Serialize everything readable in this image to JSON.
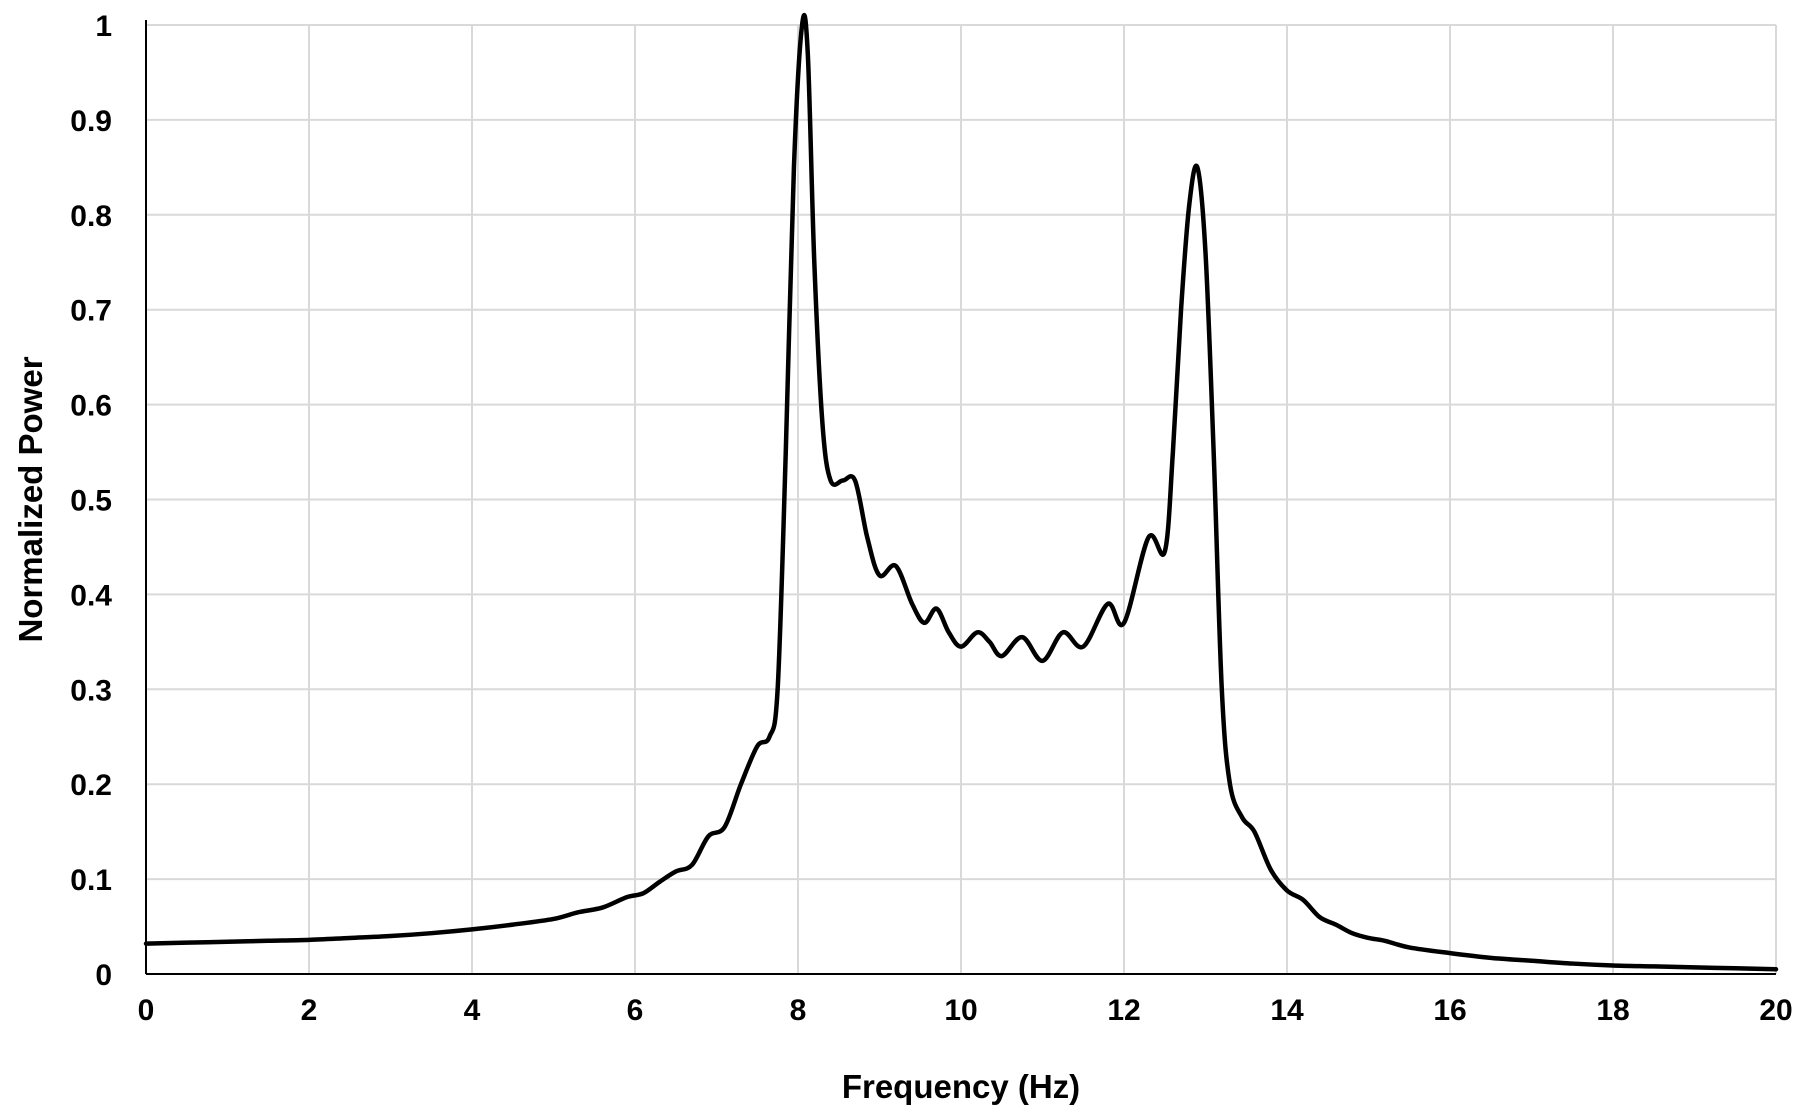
{
  "chart_data": {
    "type": "line",
    "title": "",
    "xlabel": "Frequency (Hz)",
    "ylabel": "Normalized Power",
    "xlim": [
      0,
      20
    ],
    "ylim": [
      0,
      1
    ],
    "x_ticks": [
      "0",
      "2",
      "4",
      "6",
      "8",
      "10",
      "12",
      "14",
      "16",
      "18",
      "20"
    ],
    "y_ticks": [
      "0",
      "0.1",
      "0.2",
      "0.3",
      "0.4",
      "0.5",
      "0.6",
      "0.7",
      "0.8",
      "0.9",
      "1"
    ],
    "grid": true,
    "legend": "none",
    "line_color": "#000000",
    "grid_color": "#d9d9d9",
    "series": [
      {
        "x": [
          0,
          0.5,
          1,
          1.5,
          2,
          2.5,
          3,
          3.5,
          4,
          4.5,
          5,
          5.3,
          5.6,
          5.9,
          6.1,
          6.3,
          6.5,
          6.7,
          6.9,
          7.1,
          7.3,
          7.5,
          7.65,
          7.75,
          7.85,
          7.95,
          8.05,
          8.12,
          8.2,
          8.3,
          8.4,
          8.55,
          8.7,
          8.85,
          9.0,
          9.2,
          9.4,
          9.55,
          9.7,
          9.85,
          10.0,
          10.2,
          10.35,
          10.5,
          10.75,
          11.0,
          11.25,
          11.5,
          11.8,
          12.0,
          12.3,
          12.5,
          12.6,
          12.7,
          12.8,
          12.9,
          13.0,
          13.1,
          13.2,
          13.3,
          13.45,
          13.6,
          13.8,
          14.0,
          14.2,
          14.4,
          14.6,
          14.8,
          15.0,
          15.2,
          15.5,
          16.0,
          16.5,
          17.0,
          17.5,
          18.0,
          18.5,
          19.0,
          19.5,
          20.0
        ],
        "y": [
          0.032,
          0.033,
          0.034,
          0.035,
          0.036,
          0.038,
          0.04,
          0.043,
          0.047,
          0.052,
          0.058,
          0.065,
          0.07,
          0.081,
          0.085,
          0.097,
          0.108,
          0.115,
          0.145,
          0.155,
          0.2,
          0.24,
          0.25,
          0.3,
          0.55,
          0.85,
          1.0,
          0.97,
          0.75,
          0.58,
          0.52,
          0.52,
          0.52,
          0.46,
          0.42,
          0.43,
          0.39,
          0.37,
          0.385,
          0.36,
          0.345,
          0.36,
          0.35,
          0.335,
          0.355,
          0.33,
          0.36,
          0.345,
          0.39,
          0.37,
          0.46,
          0.445,
          0.55,
          0.7,
          0.81,
          0.85,
          0.76,
          0.55,
          0.3,
          0.2,
          0.165,
          0.15,
          0.11,
          0.088,
          0.078,
          0.06,
          0.052,
          0.043,
          0.038,
          0.035,
          0.028,
          0.022,
          0.017,
          0.014,
          0.011,
          0.009,
          0.008,
          0.007,
          0.006,
          0.005
        ]
      }
    ]
  }
}
